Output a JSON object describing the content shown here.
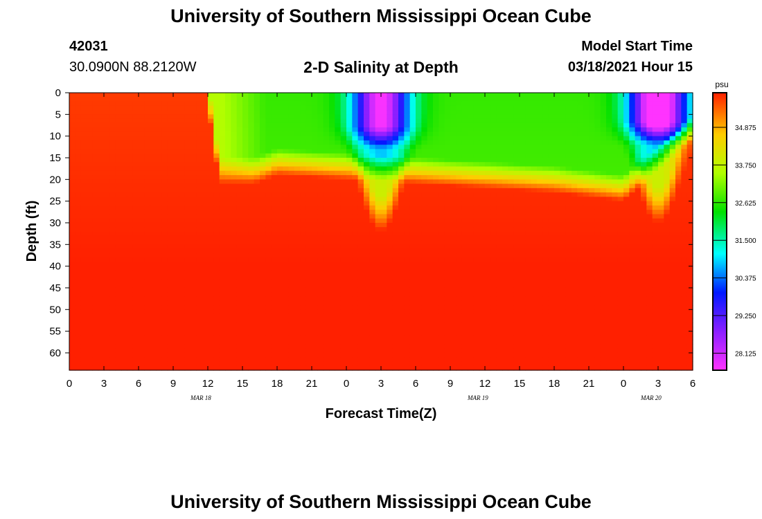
{
  "page": {
    "title_top": "University of Southern Mississippi Ocean Cube",
    "title_bottom": "University of Southern Mississippi Ocean Cube",
    "station_id": "42031",
    "coords": "30.0900N 88.2120W",
    "subtitle": "2-D Salinity at Depth",
    "model_label": "Model Start Time",
    "model_time": "03/18/2021 Hour 15"
  },
  "chart_data": {
    "type": "heatmap",
    "title": "2-D Salinity at Depth",
    "xlabel": "Forecast Time(Z)",
    "ylabel": "Depth (ft)",
    "x_ticks": [
      "0",
      "3",
      "6",
      "9",
      "12",
      "15",
      "18",
      "21",
      "0",
      "3",
      "6",
      "9",
      "12",
      "15",
      "18",
      "21",
      "0",
      "3",
      "6"
    ],
    "x_dates": [
      {
        "label": "MAR 18",
        "at_tick": 4
      },
      {
        "label": "MAR 19",
        "at_tick": 12
      },
      {
        "label": "MAR 20",
        "at_tick": 17
      }
    ],
    "y_ticks": [
      0,
      5,
      10,
      15,
      20,
      25,
      30,
      35,
      40,
      45,
      50,
      55,
      60
    ],
    "ylim": [
      0,
      64
    ],
    "forecast_hours": [
      0,
      54
    ],
    "colorbar": {
      "unit": "psu",
      "tick_labels": [
        "34.875",
        "33.750",
        "32.625",
        "31.500",
        "30.375",
        "29.250",
        "28.125"
      ],
      "min": 27.5,
      "max": 36.0
    },
    "field": {
      "background_salinity": 35.8,
      "fresh_events": [
        {
          "center_hour": 27.0,
          "width_hours": 2.5,
          "surface_salinity": 29.2,
          "mixed_depth_ft": 10,
          "trough_depth_ft": 32
        },
        {
          "center_hour": 51.0,
          "width_hours": 2.5,
          "surface_salinity": 28.2,
          "mixed_depth_ft": 9,
          "trough_depth_ft": 30
        }
      ],
      "halocline_depth_ft": [
        {
          "hour": 0,
          "depth": 0
        },
        {
          "hour": 12,
          "depth": 0
        },
        {
          "hour": 13,
          "depth": 18
        },
        {
          "hour": 16,
          "depth": 18
        },
        {
          "hour": 18,
          "depth": 16
        },
        {
          "hour": 30,
          "depth": 18
        },
        {
          "hour": 42,
          "depth": 20
        },
        {
          "hour": 48,
          "depth": 22
        },
        {
          "hour": 54,
          "depth": 8
        }
      ]
    }
  }
}
